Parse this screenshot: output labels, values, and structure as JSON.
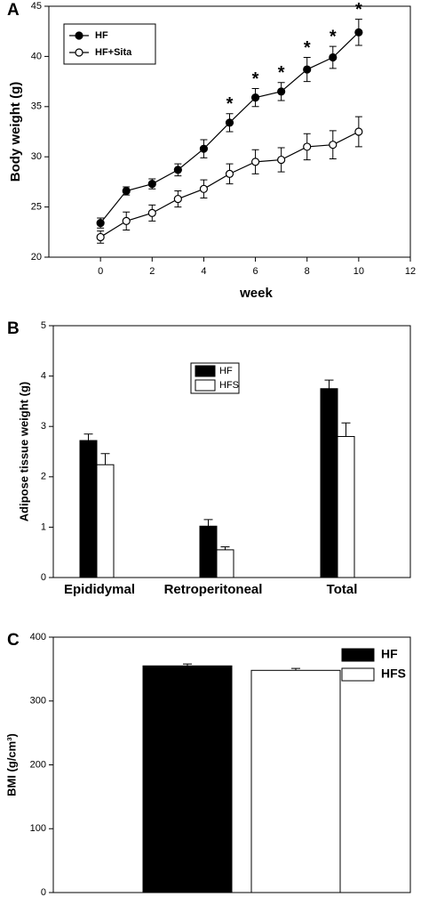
{
  "chart_data": [
    {
      "type": "line",
      "panel": "A",
      "xlabel": "week",
      "ylabel": "Body weight (g)",
      "x": [
        0,
        1,
        2,
        3,
        4,
        5,
        6,
        7,
        8,
        9,
        10
      ],
      "xlim": [
        -2,
        12
      ],
      "xticks": [
        0,
        2,
        4,
        6,
        8,
        10,
        12
      ],
      "ylim": [
        20,
        45
      ],
      "yticks": [
        20,
        25,
        30,
        35,
        40,
        45
      ],
      "legend": "upper left",
      "series": [
        {
          "name": "HF",
          "color": "#000000",
          "fill": "#000000",
          "values": [
            23.4,
            26.6,
            27.3,
            28.7,
            30.8,
            33.4,
            35.9,
            36.5,
            38.7,
            39.9,
            42.4
          ],
          "errors": [
            0.5,
            0.4,
            0.5,
            0.6,
            0.9,
            0.9,
            0.9,
            0.9,
            1.2,
            1.1,
            1.3
          ],
          "significance": [
            null,
            null,
            null,
            null,
            null,
            "*",
            "*",
            "*",
            "*",
            "*",
            "*"
          ]
        },
        {
          "name": "HF+Sita",
          "color": "#000000",
          "fill": "#ffffff",
          "values": [
            22.0,
            23.6,
            24.4,
            25.8,
            26.8,
            28.3,
            29.5,
            29.7,
            31.0,
            31.2,
            32.5
          ],
          "errors": [
            0.6,
            0.9,
            0.8,
            0.8,
            0.9,
            1.0,
            1.2,
            1.2,
            1.3,
            1.4,
            1.5
          ]
        }
      ]
    },
    {
      "type": "bar",
      "panel": "B",
      "ylabel": "Adipose tissue weight (g)",
      "categories": [
        "Epididymal",
        "Retroperitoneal",
        "Total"
      ],
      "ylim": [
        0,
        5
      ],
      "yticks": [
        0,
        1,
        2,
        3,
        4,
        5
      ],
      "legend": "upper center",
      "series": [
        {
          "name": "HF",
          "color": "#000000",
          "values": [
            2.72,
            1.02,
            3.75
          ],
          "errors": [
            0.13,
            0.13,
            0.17
          ]
        },
        {
          "name": "HFS",
          "color": "#ffffff",
          "values": [
            2.24,
            0.55,
            2.8
          ],
          "errors": [
            0.22,
            0.06,
            0.27
          ]
        }
      ]
    },
    {
      "type": "bar",
      "panel": "C",
      "ylabel": "BMI (g/cm³)",
      "categories": [
        null
      ],
      "ylim": [
        0,
        400
      ],
      "yticks": [
        0,
        100,
        200,
        300,
        400
      ],
      "legend": "upper right",
      "series": [
        {
          "name": "HF",
          "color": "#000000",
          "values": [
            355
          ],
          "errors": [
            3
          ]
        },
        {
          "name": "HFS",
          "color": "#ffffff",
          "values": [
            348
          ],
          "errors": [
            3
          ]
        }
      ]
    }
  ]
}
